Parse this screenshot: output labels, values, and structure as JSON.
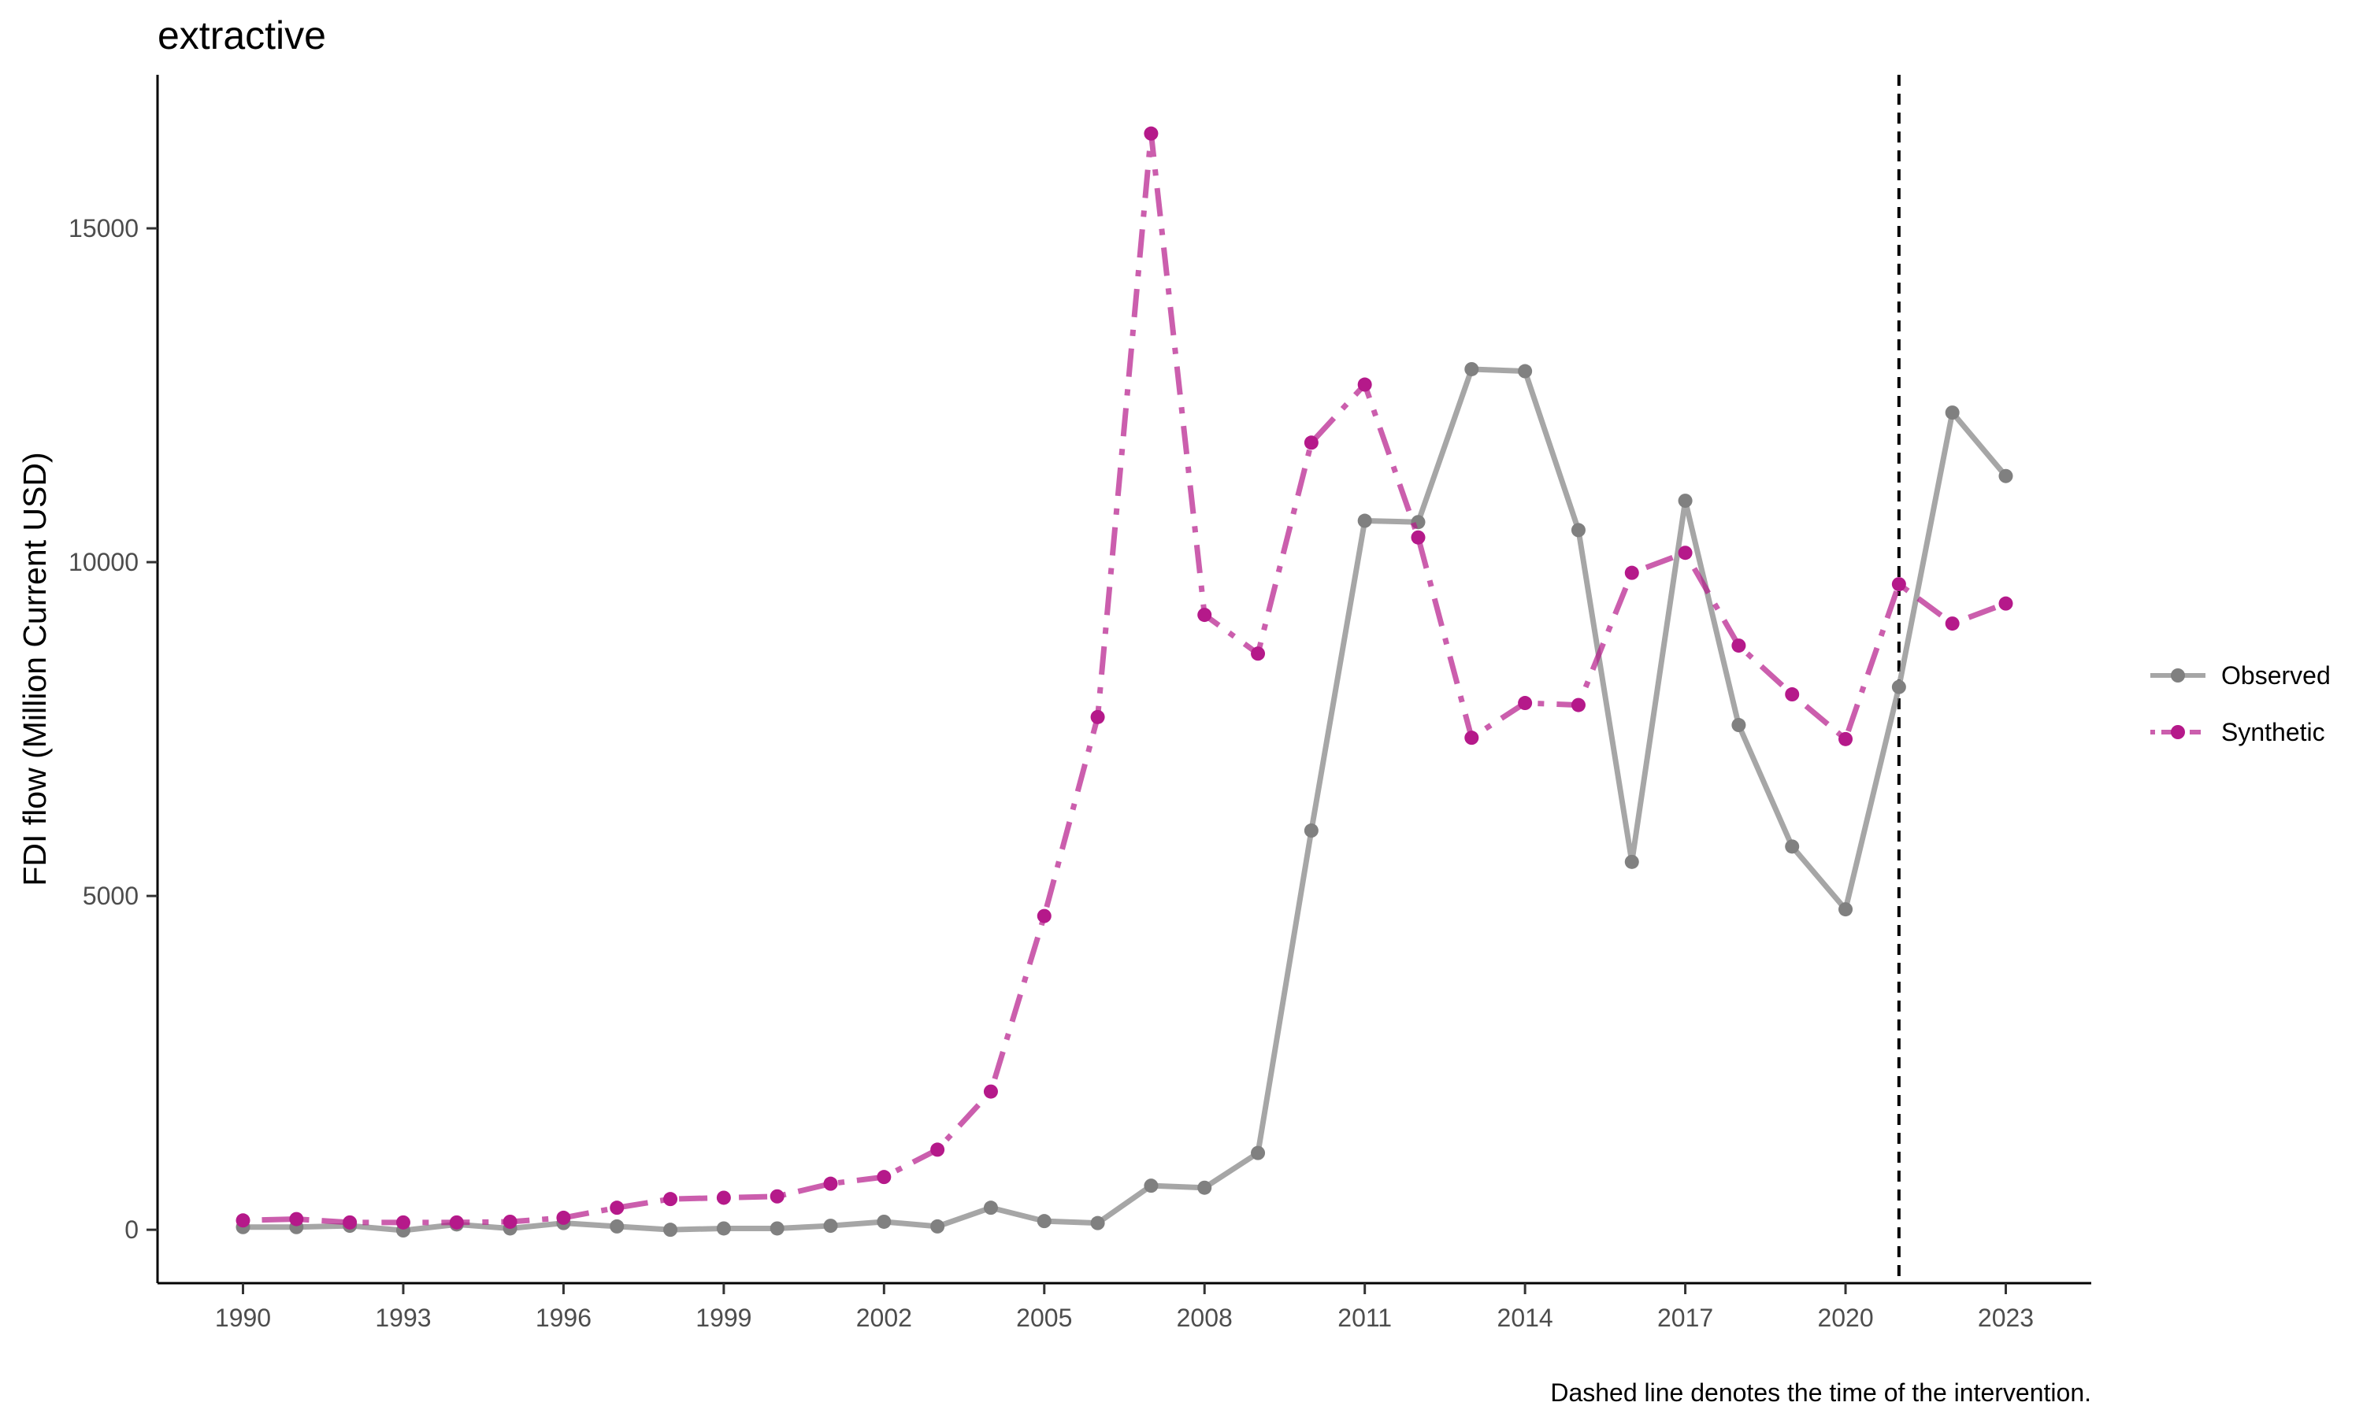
{
  "chart_data": {
    "type": "line",
    "title": "extractive",
    "ylabel": "FDI flow (Million Current USD)",
    "xlabel": "",
    "caption": "Dashed line denotes the time of the intervention.",
    "xlim": [
      1988.4,
      2024.6
    ],
    "ylim": [
      -800,
      17300
    ],
    "x_ticks": [
      1990,
      1993,
      1996,
      1999,
      2002,
      2005,
      2008,
      2011,
      2014,
      2017,
      2020,
      2023
    ],
    "x_tick_labels": [
      "1990",
      "1993",
      "1996",
      "1999",
      "2002",
      "2005",
      "2008",
      "2011",
      "2014",
      "2017",
      "2020",
      "2023"
    ],
    "y_ticks": [
      0,
      5000,
      10000,
      15000
    ],
    "y_tick_labels": [
      "0",
      "5000",
      "10000",
      "15000"
    ],
    "intervention_x": 2021,
    "grid": false,
    "legend_position": "right",
    "x": [
      1990,
      1991,
      1992,
      1993,
      1994,
      1995,
      1996,
      1997,
      1998,
      1999,
      2000,
      2001,
      2002,
      2003,
      2004,
      2005,
      2006,
      2007,
      2008,
      2009,
      2010,
      2011,
      2012,
      2013,
      2014,
      2015,
      2016,
      2017,
      2018,
      2019,
      2020,
      2021,
      2022,
      2023
    ],
    "series": [
      {
        "name": "Observed",
        "color": "#808080",
        "line_style": "solid",
        "values": [
          40,
          40,
          60,
          -10,
          80,
          20,
          100,
          50,
          0,
          20,
          20,
          60,
          120,
          50,
          330,
          130,
          100,
          660,
          630,
          1150,
          5980,
          10620,
          10600,
          12890,
          12860,
          10480,
          5510,
          10920,
          7560,
          5740,
          4800,
          8130,
          12240,
          11290
        ]
      },
      {
        "name": "Synthetic",
        "color": "#B5198A",
        "line_style": "dotdash",
        "values": [
          140,
          160,
          110,
          110,
          110,
          120,
          180,
          330,
          460,
          480,
          500,
          690,
          790,
          1200,
          2070,
          4700,
          7680,
          16420,
          9210,
          8630,
          11790,
          12660,
          10370,
          7370,
          7890,
          7860,
          9840,
          10140,
          8750,
          8020,
          7350,
          9670,
          9080,
          9380
        ]
      }
    ]
  }
}
